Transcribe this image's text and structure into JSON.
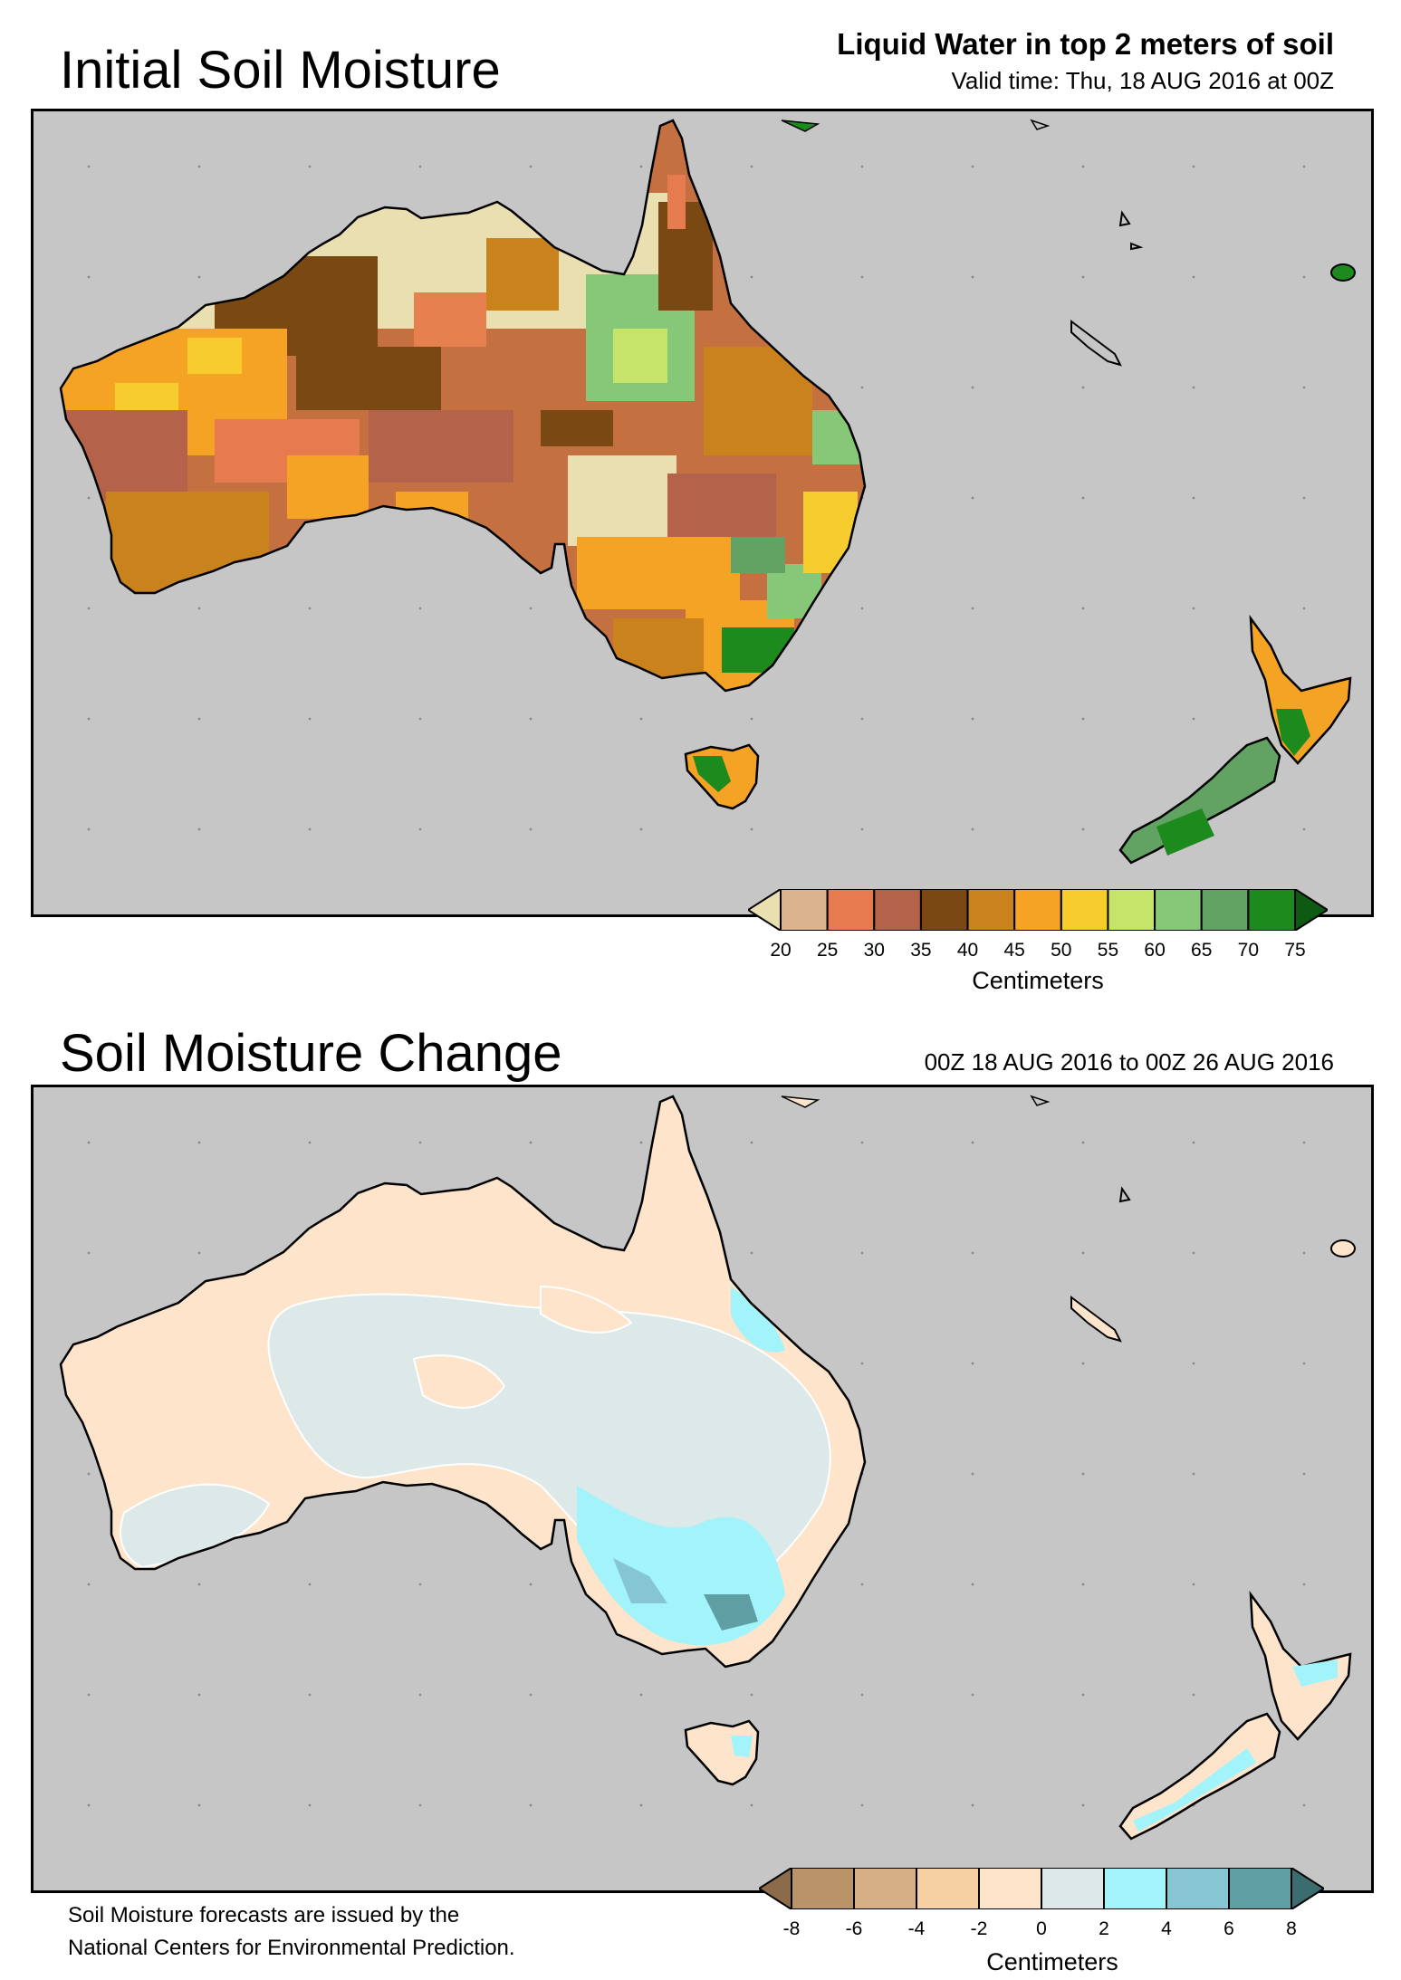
{
  "top_panel": {
    "title": "Initial Soil Moisture",
    "subtitle_bold": "Liquid Water in top 2 meters of soil",
    "subtitle": "Valid time: Thu, 18 AUG 2016 at 00Z",
    "colorbar": {
      "ticks": [
        "20",
        "25",
        "30",
        "35",
        "40",
        "45",
        "50",
        "55",
        "60",
        "65",
        "70",
        "75"
      ],
      "colors": [
        "#e9dfb0",
        "#d9b48e",
        "#e67b4f",
        "#b4624a",
        "#7a4812",
        "#c9821c",
        "#f5a325",
        "#f6cc2e",
        "#c7e46a",
        "#86c878",
        "#62a263",
        "#1c8a1d",
        "#0d5a12"
      ],
      "units": "Centimeters"
    }
  },
  "bottom_panel": {
    "title": "Soil Moisture Change",
    "subtitle": "00Z 18 AUG 2016 to 00Z 26 AUG 2016",
    "colorbar": {
      "ticks": [
        "-8",
        "-6",
        "-4",
        "-2",
        "0",
        "2",
        "4",
        "6",
        "8"
      ],
      "colors": [
        "#8c6b4a",
        "#bb9368",
        "#d6af84",
        "#f6cfa3",
        "#fde4cb",
        "#dde8e8",
        "#a3f3fb",
        "#86c6d3",
        "#5f9ea2",
        "#3b6c70"
      ],
      "units": "Centimeters"
    }
  },
  "footer": {
    "line1": "Soil Moisture forecasts are issued by the",
    "line2": "National Centers for Environmental Prediction."
  }
}
